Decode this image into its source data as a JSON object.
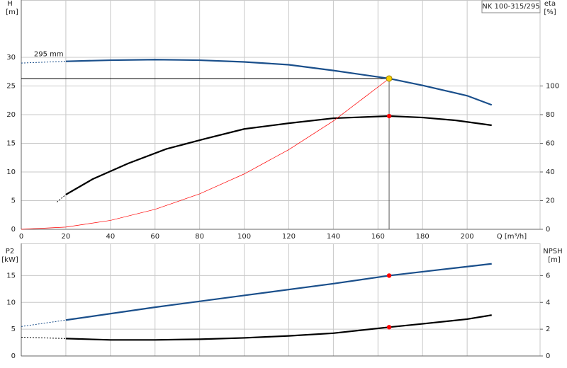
{
  "chart_data": [
    {
      "type": "line",
      "title": "NK 100-315/295",
      "y_label": "H",
      "y_unit": "[m]",
      "y2_label": "eta",
      "y2_unit": "[%]",
      "x_label": "Q [m³/h]",
      "xlim": [
        0,
        232.7
      ],
      "xticks": [
        0,
        20,
        40,
        60,
        80,
        100,
        120,
        140,
        160,
        180,
        200
      ],
      "ylim": [
        0,
        40
      ],
      "yticks": [
        0,
        5,
        10,
        15,
        20,
        25,
        30
      ],
      "y2lim": [
        0,
        160
      ],
      "y2ticks": [
        0,
        20,
        40,
        60,
        80,
        100
      ],
      "grid": true,
      "series": [
        {
          "name": "295 mm",
          "color": "#1a4f8b",
          "x": [
            20,
            40,
            60,
            80,
            100,
            120,
            140,
            165,
            180,
            200,
            211
          ],
          "values": [
            29.3,
            29.5,
            29.6,
            29.5,
            29.2,
            28.7,
            27.7,
            26.3,
            25.1,
            23.3,
            21.7
          ]
        },
        {
          "color": "#1a4f8b",
          "line_style": "dashed",
          "x": [
            0,
            20
          ],
          "values": [
            29.0,
            29.3
          ]
        },
        {
          "color": "#000000",
          "axis": "y2",
          "x": [
            20,
            32,
            48,
            65,
            82,
            100,
            120,
            140,
            165,
            180,
            195,
            211
          ],
          "values": [
            24.2,
            35,
            46,
            56,
            63,
            70,
            74,
            77.5,
            79,
            78,
            76,
            72.6
          ],
          "marker": {
            "x": 165,
            "y": 79,
            "color": "#ff0000"
          }
        },
        {
          "color": "#000000",
          "axis": "y2",
          "line_style": "dashed",
          "x": [
            16,
            20
          ],
          "values": [
            19,
            24.2
          ]
        },
        {
          "color": "#ff0000",
          "line_style": "thin",
          "x": [
            0,
            20,
            40,
            60,
            80,
            100,
            120,
            140,
            165
          ],
          "values": [
            0,
            0.39,
            1.55,
            3.48,
            6.18,
            9.66,
            13.9,
            18.9,
            26.3
          ]
        }
      ],
      "duty_point": {
        "x": 165,
        "y": 26.3,
        "color": "#f5d000"
      }
    },
    {
      "type": "line",
      "y_label": "P2",
      "y_unit": "[kW]",
      "y2_label": "NPSH",
      "y2_unit": "[m]",
      "ylim": [
        0,
        21
      ],
      "yticks": [
        0,
        5,
        10,
        15
      ],
      "y2lim": [
        0,
        8.4
      ],
      "y2ticks": [
        0,
        2,
        4,
        6
      ],
      "grid": true,
      "series": [
        {
          "color": "#1a4f8b",
          "x": [
            20,
            60,
            100,
            140,
            165,
            190,
            211
          ],
          "values": [
            6.7,
            9.1,
            11.3,
            13.5,
            15.0,
            16.2,
            17.2
          ],
          "marker": {
            "x": 165,
            "y": 15.0,
            "color": "#ff0000"
          }
        },
        {
          "color": "#1a4f8b",
          "line_style": "dashed",
          "x": [
            0,
            20
          ],
          "values": [
            5.5,
            6.7
          ]
        },
        {
          "color": "#000000",
          "axis": "y2",
          "x": [
            20,
            40,
            60,
            80,
            100,
            120,
            140,
            165,
            180,
            200,
            211
          ],
          "values": [
            1.3,
            1.2,
            1.2,
            1.25,
            1.35,
            1.5,
            1.7,
            2.15,
            2.4,
            2.75,
            3.05
          ],
          "marker": {
            "x": 165,
            "y": 2.15,
            "color": "#ff0000"
          }
        },
        {
          "color": "#000000",
          "axis": "y2",
          "line_style": "dashed",
          "x": [
            0,
            20
          ],
          "values": [
            1.4,
            1.3
          ]
        }
      ]
    }
  ]
}
